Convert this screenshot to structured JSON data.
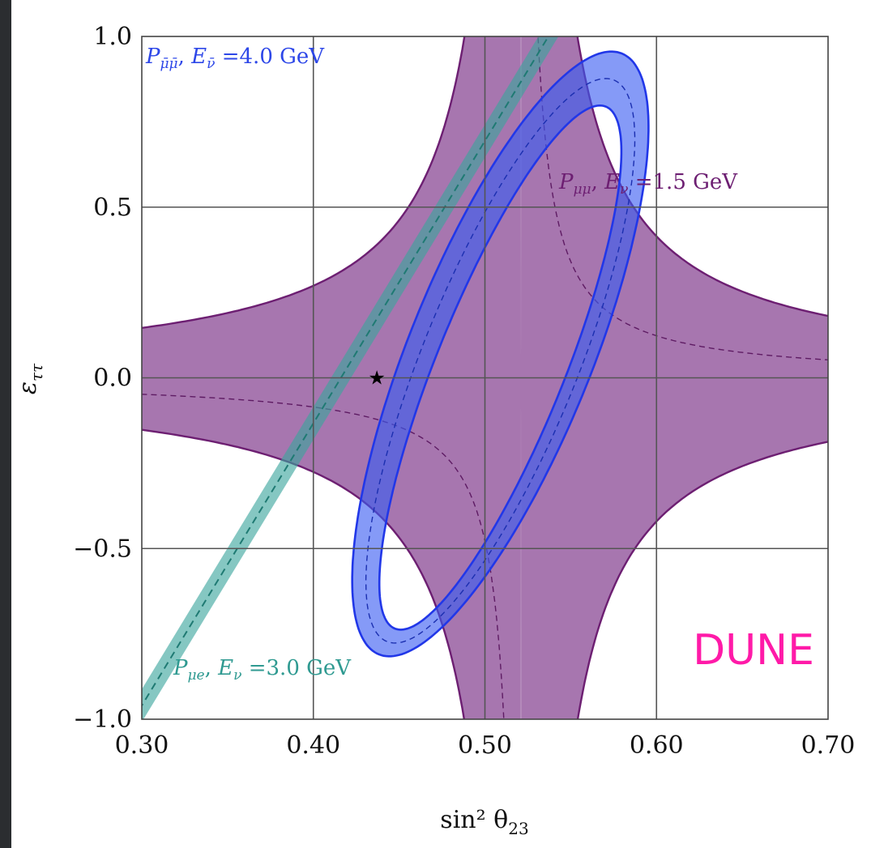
{
  "chart_data": {
    "type": "area",
    "xlabel": "sin² θ₂₃",
    "ylabel": "ε_ττ",
    "xlim": [
      0.3,
      0.7
    ],
    "ylim": [
      -1.0,
      1.0
    ],
    "xticks": [
      "0.30",
      "0.40",
      "0.50",
      "0.60",
      "0.70"
    ],
    "yticks": [
      "−1.0",
      "−0.5",
      "0.0",
      "0.5",
      "1.0"
    ],
    "grid": true,
    "annotation": "DUNE",
    "best_fit": {
      "x": 0.437,
      "y": 0.0,
      "marker": "star"
    },
    "series": [
      {
        "name": "P_μ̄μ̄, E_ν̄ = 4.0 GeV",
        "color": "#3355ee",
        "kind": "ellipse band",
        "center": [
          0.509,
          0.1
        ],
        "semi_axis_major": 0.87,
        "semi_axis_minor": 0.077,
        "band_halfwidth": 0.03,
        "outer_extent": {
          "x": [
            0.415,
            0.603
          ],
          "y": [
            -0.77,
            0.91
          ]
        },
        "inner_extent": {
          "x": [
            0.435,
            0.583
          ],
          "y": [
            -0.72,
            0.78
          ]
        }
      },
      {
        "name": "P_μμ, E_ν = 1.5 GeV",
        "color": "#7b2a7f",
        "kind": "hyperbolic band",
        "asymptote_x": 0.521,
        "asymptote_y": -0.003,
        "k": 0.0285,
        "k_range": [
          0.024,
          0.033
        ]
      },
      {
        "name": "P_μe, E_ν = 3.0 GeV",
        "color": "#3aa59c",
        "kind": "linear band",
        "x": [
          0.3,
          0.537
        ],
        "y": [
          -0.96,
          1.0
        ],
        "band_halfwidth": 0.02
      }
    ]
  }
}
